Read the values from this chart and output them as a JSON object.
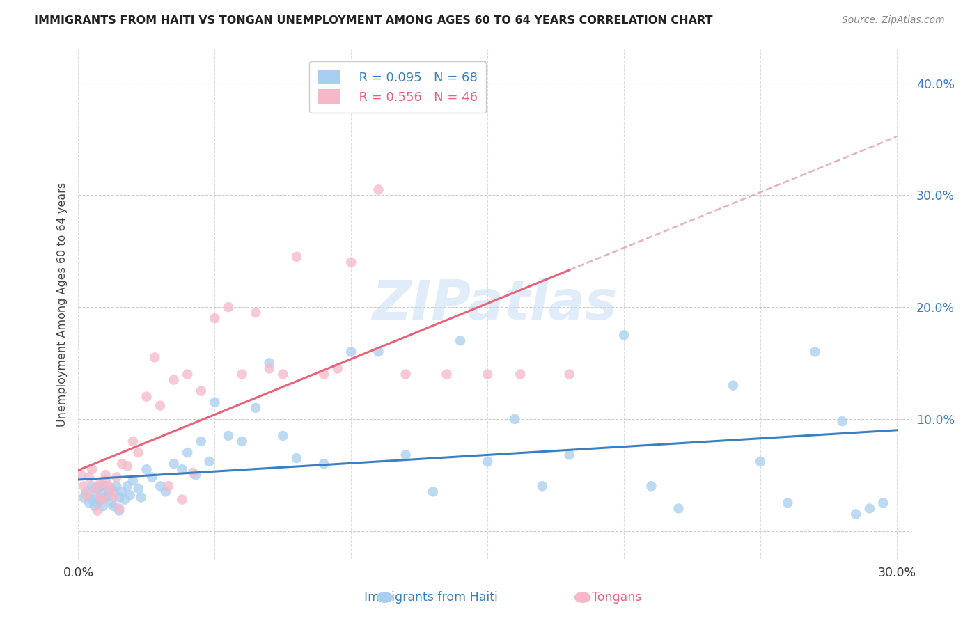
{
  "title": "IMMIGRANTS FROM HAITI VS TONGAN UNEMPLOYMENT AMONG AGES 60 TO 64 YEARS CORRELATION CHART",
  "source": "Source: ZipAtlas.com",
  "ylabel": "Unemployment Among Ages 60 to 64 years",
  "xlim": [
    0.0,
    0.305
  ],
  "ylim": [
    -0.025,
    0.43
  ],
  "x_ticks": [
    0.0,
    0.05,
    0.1,
    0.15,
    0.2,
    0.25,
    0.3
  ],
  "x_tick_labels": [
    "0.0%",
    "",
    "",
    "",
    "",
    "",
    "30.0%"
  ],
  "y_ticks": [
    0.0,
    0.1,
    0.2,
    0.3,
    0.4
  ],
  "y_tick_labels": [
    "",
    "10.0%",
    "20.0%",
    "30.0%",
    "40.0%"
  ],
  "haiti_color": "#a8cef0",
  "tonga_color": "#f5b8c8",
  "haiti_line_color": "#3a7fc1",
  "tonga_line_color": "#e8637a",
  "tonga_dash_color": "#e8a0b0",
  "legend_r_haiti": "R = 0.095",
  "legend_n_haiti": "N = 68",
  "legend_r_tonga": "R = 0.556",
  "legend_n_tonga": "N = 46",
  "watermark": "ZIPatlas",
  "haiti_scatter_x": [
    0.002,
    0.003,
    0.004,
    0.005,
    0.005,
    0.006,
    0.006,
    0.007,
    0.007,
    0.008,
    0.008,
    0.009,
    0.009,
    0.01,
    0.01,
    0.011,
    0.012,
    0.012,
    0.013,
    0.013,
    0.014,
    0.015,
    0.015,
    0.016,
    0.017,
    0.018,
    0.019,
    0.02,
    0.022,
    0.023,
    0.025,
    0.027,
    0.03,
    0.032,
    0.035,
    0.038,
    0.04,
    0.043,
    0.045,
    0.048,
    0.05,
    0.055,
    0.06,
    0.065,
    0.07,
    0.075,
    0.08,
    0.09,
    0.1,
    0.11,
    0.12,
    0.13,
    0.14,
    0.15,
    0.16,
    0.17,
    0.18,
    0.2,
    0.21,
    0.22,
    0.24,
    0.25,
    0.26,
    0.27,
    0.28,
    0.285,
    0.29,
    0.295
  ],
  "haiti_scatter_y": [
    0.03,
    0.035,
    0.025,
    0.04,
    0.028,
    0.032,
    0.022,
    0.038,
    0.025,
    0.04,
    0.028,
    0.035,
    0.022,
    0.04,
    0.03,
    0.032,
    0.038,
    0.025,
    0.035,
    0.022,
    0.04,
    0.03,
    0.018,
    0.035,
    0.028,
    0.04,
    0.032,
    0.045,
    0.038,
    0.03,
    0.055,
    0.048,
    0.04,
    0.035,
    0.06,
    0.055,
    0.07,
    0.05,
    0.08,
    0.062,
    0.115,
    0.085,
    0.08,
    0.11,
    0.15,
    0.085,
    0.065,
    0.06,
    0.16,
    0.16,
    0.068,
    0.035,
    0.17,
    0.062,
    0.1,
    0.04,
    0.068,
    0.175,
    0.04,
    0.02,
    0.13,
    0.062,
    0.025,
    0.16,
    0.098,
    0.015,
    0.02,
    0.025
  ],
  "tonga_scatter_x": [
    0.001,
    0.002,
    0.003,
    0.004,
    0.005,
    0.006,
    0.007,
    0.008,
    0.008,
    0.009,
    0.01,
    0.01,
    0.011,
    0.012,
    0.013,
    0.014,
    0.015,
    0.016,
    0.018,
    0.02,
    0.022,
    0.025,
    0.028,
    0.03,
    0.033,
    0.035,
    0.038,
    0.04,
    0.042,
    0.045,
    0.05,
    0.055,
    0.06,
    0.065,
    0.07,
    0.075,
    0.08,
    0.09,
    0.095,
    0.1,
    0.11,
    0.12,
    0.135,
    0.15,
    0.162,
    0.18
  ],
  "tonga_scatter_y": [
    0.05,
    0.04,
    0.032,
    0.048,
    0.055,
    0.038,
    0.018,
    0.042,
    0.03,
    0.028,
    0.05,
    0.045,
    0.04,
    0.035,
    0.03,
    0.048,
    0.02,
    0.06,
    0.058,
    0.08,
    0.07,
    0.12,
    0.155,
    0.112,
    0.04,
    0.135,
    0.028,
    0.14,
    0.052,
    0.125,
    0.19,
    0.2,
    0.14,
    0.195,
    0.145,
    0.14,
    0.245,
    0.14,
    0.145,
    0.24,
    0.305,
    0.14,
    0.14,
    0.14,
    0.14,
    0.14
  ]
}
